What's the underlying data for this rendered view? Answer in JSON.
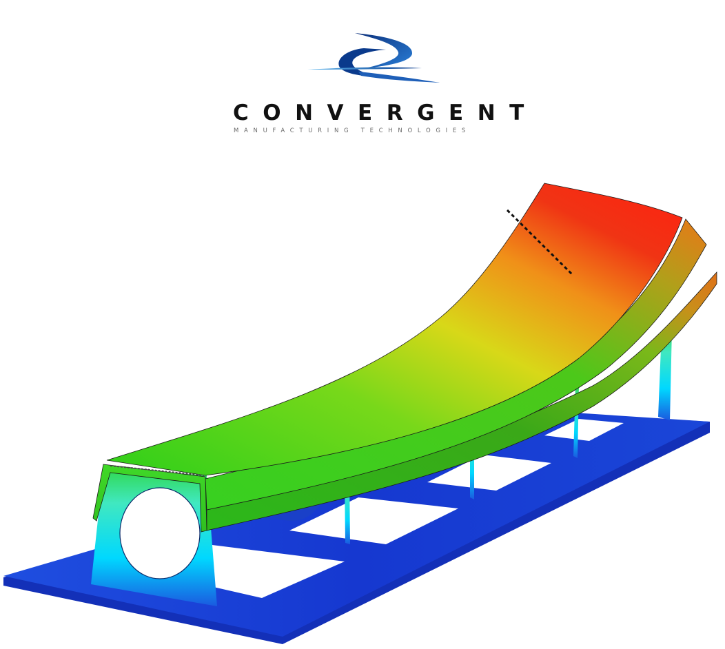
{
  "brand": {
    "name": "CONVERGENT",
    "tagline": "MANUFACTURING   TECHNOLOGIES",
    "logo_icon": "convergent-swoosh-logo-icon",
    "colors": {
      "logo_dark": "#0a3a8c",
      "logo_light": "#2a8ee0",
      "text": "#111111",
      "tagline": "#6a6a6a"
    }
  },
  "scene": {
    "subject": "curved composite part on tooling fixture with deformation contour",
    "contour_colors": [
      "#1a3cd8",
      "#00d8ff",
      "#22d822",
      "#e8e020",
      "#ff2010"
    ]
  }
}
